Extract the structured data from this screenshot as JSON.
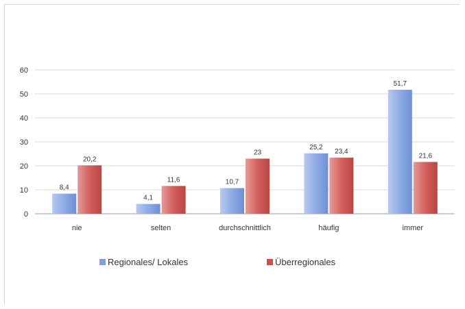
{
  "chart_data": {
    "type": "bar",
    "categories": [
      "nie",
      "selten",
      "durchschnittlich",
      "häufig",
      "immer"
    ],
    "series": [
      {
        "name": "Regionales/ Lokales",
        "values": [
          8.4,
          4.1,
          10.7,
          25.2,
          51.7
        ],
        "labels": [
          "8,4",
          "4,1",
          "10,7",
          "25,2",
          "51,7"
        ],
        "color": "#7f9fdc"
      },
      {
        "name": "Überregionales",
        "values": [
          20.2,
          11.6,
          23,
          23.4,
          21.6
        ],
        "labels": [
          "20,2",
          "11,6",
          "23",
          "23,4",
          "21,6"
        ],
        "color": "#c9504e"
      }
    ],
    "ylim": [
      0,
      60
    ],
    "yticks": [
      0,
      10,
      20,
      30,
      40,
      50,
      60
    ],
    "grid": true,
    "legend_position": "bottom"
  }
}
